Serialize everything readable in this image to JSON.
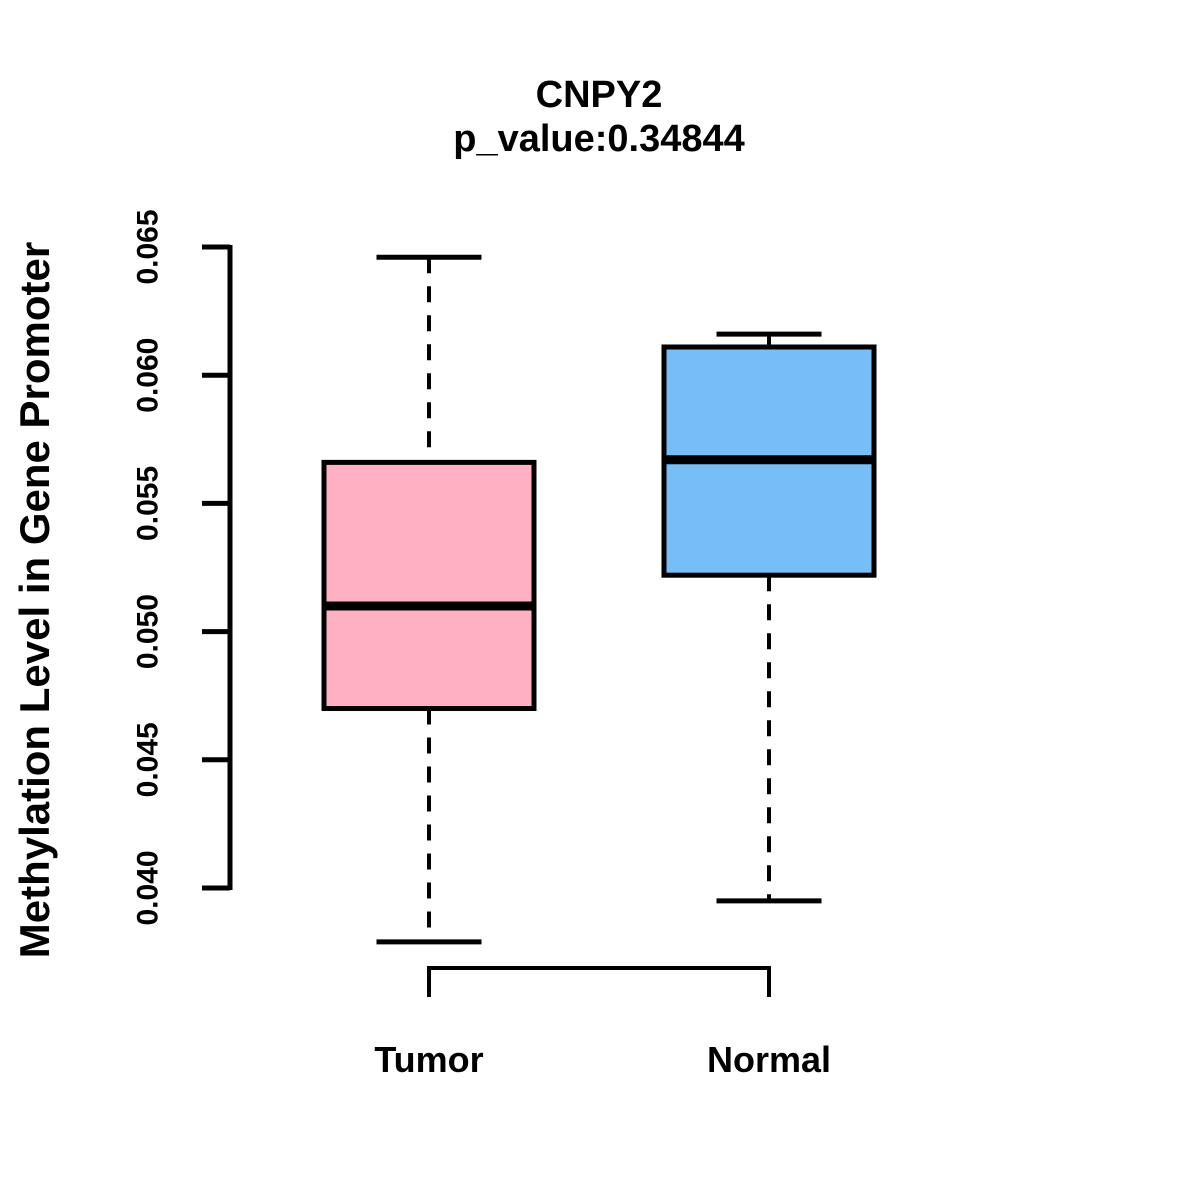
{
  "title": "CNPY2",
  "subtitle": "p_value:0.34844",
  "p_value": "0.34844",
  "gene": "CNPY2",
  "chart_data": {
    "type": "boxplot",
    "title": "CNPY2",
    "subtitle": "p_value:0.34844",
    "xlabel": "",
    "ylabel": "Methylation Level in Gene Promoter",
    "categories": [
      "Tumor",
      "Normal"
    ],
    "y_ticks": [
      "0.040",
      "0.045",
      "0.050",
      "0.055",
      "0.060",
      "0.065"
    ],
    "y_tick_values": [
      0.04,
      0.045,
      0.05,
      0.055,
      0.06,
      0.065
    ],
    "ylim": [
      0.0375,
      0.0655
    ],
    "grid": false,
    "legend": "none",
    "series": [
      {
        "name": "Tumor",
        "color": "#FFB1C3",
        "lower_whisker": 0.0379,
        "q1": 0.047,
        "median": 0.051,
        "q3": 0.0566,
        "upper_whisker": 0.0646,
        "outliers": []
      },
      {
        "name": "Normal",
        "color": "#76BEF5",
        "lower_whisker": 0.0395,
        "q1": 0.0522,
        "median": 0.0567,
        "q3": 0.0611,
        "upper_whisker": 0.0616,
        "outliers": []
      }
    ],
    "colors": {
      "box_border": "#000000",
      "median_line": "#000000",
      "whisker": "#000000",
      "axis": "#000000",
      "background": "#ffffff"
    }
  }
}
